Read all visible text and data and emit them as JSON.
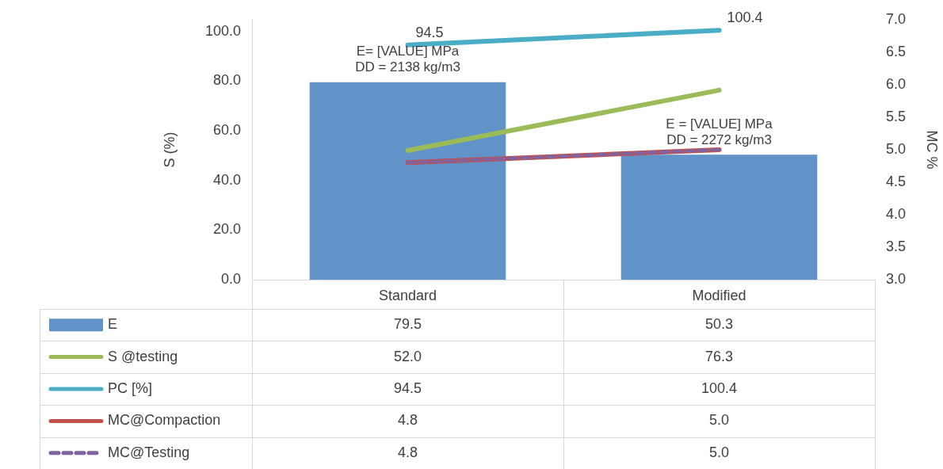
{
  "chart_data": {
    "type": "bar",
    "categories": [
      "Standard",
      "Modified"
    ],
    "ylabel": "S (%)",
    "y2label": "MC %",
    "ylim": [
      0,
      104.7
    ],
    "yticks": [
      {
        "value": 0,
        "label": "0.0"
      },
      {
        "value": 20,
        "label": "20.0"
      },
      {
        "value": 40,
        "label": "40.0"
      },
      {
        "value": 60,
        "label": "60.0"
      },
      {
        "value": 80,
        "label": "80.0"
      },
      {
        "value": 100,
        "label": "100.0"
      }
    ],
    "y2lim": [
      3,
      7
    ],
    "y2ticks": [
      {
        "value": 3,
        "label": "3.0"
      },
      {
        "value": 3.5,
        "label": "3.5"
      },
      {
        "value": 4,
        "label": "4.0"
      },
      {
        "value": 4.5,
        "label": "4.5"
      },
      {
        "value": 5,
        "label": "5.0"
      },
      {
        "value": 5.5,
        "label": "5.5"
      },
      {
        "value": 6,
        "label": "6.0"
      },
      {
        "value": 6.5,
        "label": "6.5"
      },
      {
        "value": 7,
        "label": "7.0"
      }
    ],
    "legend": "bottom",
    "marker": "none",
    "series": [
      {
        "name": "E",
        "color": "#6193c9",
        "values": [
          79.5,
          50.3
        ],
        "value_labels": [
          "79.5",
          "50.3"
        ]
      },
      {
        "name": "S @testing",
        "type": "line",
        "color": "#9bbb59",
        "values": [
          52,
          76.3
        ],
        "value_labels": [
          "52.0",
          "76.3"
        ]
      },
      {
        "name": "PC [%]",
        "type": "line",
        "color": "#4bacc6",
        "values": [
          94.5,
          100.4
        ],
        "value_labels": [
          "94.5",
          "100.4"
        ]
      },
      {
        "name": "MC@Compaction",
        "type": "line",
        "axis": "y2",
        "color": "#c0504d",
        "values": [
          4.8,
          5.0
        ],
        "value_labels": [
          "4.8",
          "5.0"
        ]
      },
      {
        "name": "MC@Testing",
        "type": "line",
        "axis": "y2",
        "line_style": "dashed",
        "color": "#8064a2",
        "values": [
          4.8,
          5.0
        ],
        "value_labels": [
          "4.8",
          "5.0"
        ]
      }
    ],
    "annotations": [
      "E= [VALUE] MPa\nDD = 2138 kg/m3",
      {
        "text": "94.5",
        "x": "Standard",
        "y": 94.5
      },
      "E = [VALUE] MPa\nDD = 2272 kg/m3",
      {
        "text": "100.4",
        "x": "Modified",
        "y": 100.4
      }
    ]
  }
}
